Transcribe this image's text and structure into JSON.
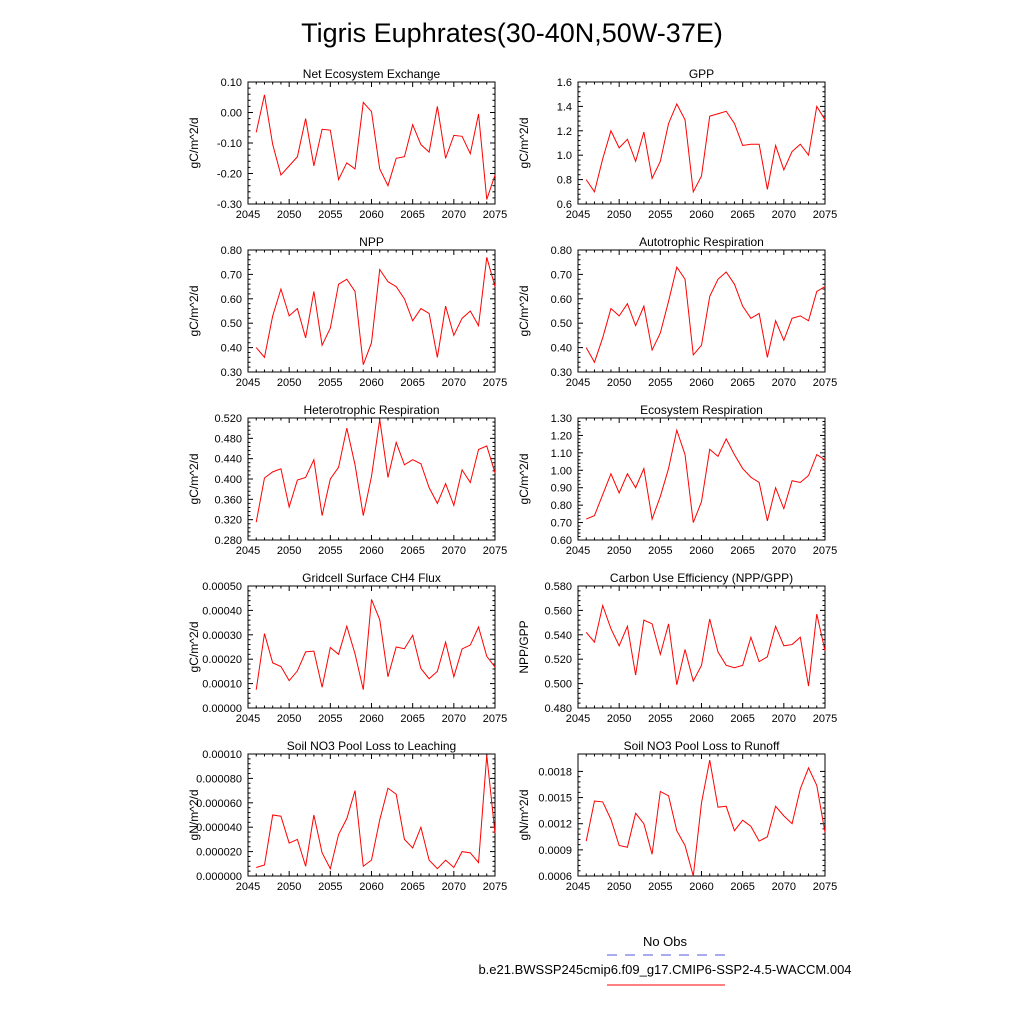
{
  "figure": {
    "title": "Tigris Euphrates(30-40N,50W-37E)",
    "line_color": "#ff0000",
    "obs_color": "#5555dd"
  },
  "legend": {
    "obs_label": "No Obs",
    "model_label": "b.e21.BWSSP245cmip6.f09_g17.CMIP6-SSP2-4.5-WACCM.004"
  },
  "chart_data": [
    {
      "type": "line",
      "title": "Net Ecosystem Exchange",
      "ylabel": "gC/m^2/d",
      "xlim": [
        2045,
        2075
      ],
      "ylim": [
        -0.3,
        0.1
      ],
      "xticks": [
        "2045",
        "2050",
        "2055",
        "2060",
        "2065",
        "2070",
        "2075"
      ],
      "yticks": [
        {
          "v": -0.3,
          "l": "-0.30"
        },
        {
          "v": -0.2,
          "l": "-0.20"
        },
        {
          "v": -0.1,
          "l": "-0.10"
        },
        {
          "v": 0.0,
          "l": "0.00"
        },
        {
          "v": 0.1,
          "l": "0.10"
        }
      ],
      "x": [
        2046,
        2047,
        2048,
        2049,
        2050,
        2051,
        2052,
        2053,
        2054,
        2055,
        2056,
        2057,
        2058,
        2059,
        2060,
        2061,
        2062,
        2063,
        2064,
        2065,
        2066,
        2067,
        2068,
        2069,
        2070,
        2071,
        2072,
        2073,
        2074,
        2075
      ],
      "series": [
        {
          "values": [
            -0.065,
            0.058,
            -0.105,
            -0.205,
            -0.175,
            -0.145,
            -0.02,
            -0.175,
            -0.055,
            -0.058,
            -0.22,
            -0.165,
            -0.185,
            0.033,
            0.003,
            -0.185,
            -0.24,
            -0.15,
            -0.145,
            -0.04,
            -0.105,
            -0.13,
            0.02,
            -0.15,
            -0.075,
            -0.078,
            -0.135,
            -0.005,
            -0.285,
            -0.205
          ]
        }
      ]
    },
    {
      "type": "line",
      "title": "GPP",
      "ylabel": "gC/m^2/d",
      "xlim": [
        2045,
        2075
      ],
      "ylim": [
        0.6,
        1.6
      ],
      "xticks": [
        "2045",
        "2050",
        "2055",
        "2060",
        "2065",
        "2070",
        "2075"
      ],
      "yticks": [
        {
          "v": 0.6,
          "l": "0.6"
        },
        {
          "v": 0.8,
          "l": "0.8"
        },
        {
          "v": 1.0,
          "l": "1.0"
        },
        {
          "v": 1.2,
          "l": "1.2"
        },
        {
          "v": 1.4,
          "l": "1.4"
        },
        {
          "v": 1.6,
          "l": "1.6"
        }
      ],
      "x": [
        2046,
        2047,
        2048,
        2049,
        2050,
        2051,
        2052,
        2053,
        2054,
        2055,
        2056,
        2057,
        2058,
        2059,
        2060,
        2061,
        2062,
        2063,
        2064,
        2065,
        2066,
        2067,
        2068,
        2069,
        2070,
        2071,
        2072,
        2073,
        2074,
        2075
      ],
      "series": [
        {
          "values": [
            0.8,
            0.7,
            0.97,
            1.2,
            1.06,
            1.13,
            0.95,
            1.19,
            0.81,
            0.95,
            1.26,
            1.42,
            1.29,
            0.7,
            0.83,
            1.32,
            1.34,
            1.36,
            1.26,
            1.08,
            1.09,
            1.09,
            0.72,
            1.08,
            0.88,
            1.03,
            1.09,
            1.0,
            1.4,
            1.29
          ]
        }
      ]
    },
    {
      "type": "line",
      "title": "NPP",
      "ylabel": "gC/m^2/d",
      "xlim": [
        2045,
        2075
      ],
      "ylim": [
        0.3,
        0.8
      ],
      "xticks": [
        "2045",
        "2050",
        "2055",
        "2060",
        "2065",
        "2070",
        "2075"
      ],
      "yticks": [
        {
          "v": 0.3,
          "l": "0.30"
        },
        {
          "v": 0.4,
          "l": "0.40"
        },
        {
          "v": 0.5,
          "l": "0.50"
        },
        {
          "v": 0.6,
          "l": "0.60"
        },
        {
          "v": 0.7,
          "l": "0.70"
        },
        {
          "v": 0.8,
          "l": "0.80"
        }
      ],
      "x": [
        2046,
        2047,
        2048,
        2049,
        2050,
        2051,
        2052,
        2053,
        2054,
        2055,
        2056,
        2057,
        2058,
        2059,
        2060,
        2061,
        2062,
        2063,
        2064,
        2065,
        2066,
        2067,
        2068,
        2069,
        2070,
        2071,
        2072,
        2073,
        2074,
        2075
      ],
      "series": [
        {
          "values": [
            0.4,
            0.36,
            0.53,
            0.64,
            0.53,
            0.56,
            0.44,
            0.63,
            0.41,
            0.48,
            0.66,
            0.68,
            0.63,
            0.33,
            0.42,
            0.72,
            0.67,
            0.65,
            0.6,
            0.51,
            0.56,
            0.54,
            0.36,
            0.57,
            0.45,
            0.52,
            0.55,
            0.49,
            0.77,
            0.65
          ]
        }
      ]
    },
    {
      "type": "line",
      "title": "Autotrophic Respiration",
      "ylabel": "gC/m^2/d",
      "xlim": [
        2045,
        2075
      ],
      "ylim": [
        0.3,
        0.8
      ],
      "xticks": [
        "2045",
        "2050",
        "2055",
        "2060",
        "2065",
        "2070",
        "2075"
      ],
      "yticks": [
        {
          "v": 0.3,
          "l": "0.30"
        },
        {
          "v": 0.4,
          "l": "0.40"
        },
        {
          "v": 0.5,
          "l": "0.50"
        },
        {
          "v": 0.6,
          "l": "0.60"
        },
        {
          "v": 0.7,
          "l": "0.70"
        },
        {
          "v": 0.8,
          "l": "0.80"
        }
      ],
      "x": [
        2046,
        2047,
        2048,
        2049,
        2050,
        2051,
        2052,
        2053,
        2054,
        2055,
        2056,
        2057,
        2058,
        2059,
        2060,
        2061,
        2062,
        2063,
        2064,
        2065,
        2066,
        2067,
        2068,
        2069,
        2070,
        2071,
        2072,
        2073,
        2074,
        2075
      ],
      "series": [
        {
          "values": [
            0.4,
            0.34,
            0.44,
            0.56,
            0.53,
            0.58,
            0.49,
            0.57,
            0.39,
            0.46,
            0.59,
            0.73,
            0.68,
            0.37,
            0.41,
            0.61,
            0.68,
            0.71,
            0.66,
            0.57,
            0.52,
            0.54,
            0.36,
            0.51,
            0.43,
            0.52,
            0.53,
            0.51,
            0.63,
            0.65
          ]
        }
      ]
    },
    {
      "type": "line",
      "title": "Heterotrophic Respiration",
      "ylabel": "gC/m^2/d",
      "xlim": [
        2045,
        2075
      ],
      "ylim": [
        0.28,
        0.52
      ],
      "xticks": [
        "2045",
        "2050",
        "2055",
        "2060",
        "2065",
        "2070",
        "2075"
      ],
      "yticks": [
        {
          "v": 0.28,
          "l": "0.280"
        },
        {
          "v": 0.32,
          "l": "0.320"
        },
        {
          "v": 0.36,
          "l": "0.360"
        },
        {
          "v": 0.4,
          "l": "0.400"
        },
        {
          "v": 0.44,
          "l": "0.440"
        },
        {
          "v": 0.48,
          "l": "0.480"
        },
        {
          "v": 0.52,
          "l": "0.520"
        }
      ],
      "x": [
        2046,
        2047,
        2048,
        2049,
        2050,
        2051,
        2052,
        2053,
        2054,
        2055,
        2056,
        2057,
        2058,
        2059,
        2060,
        2061,
        2062,
        2063,
        2064,
        2065,
        2066,
        2067,
        2068,
        2069,
        2070,
        2071,
        2072,
        2073,
        2074,
        2075
      ],
      "series": [
        {
          "values": [
            0.315,
            0.402,
            0.414,
            0.42,
            0.345,
            0.398,
            0.403,
            0.438,
            0.328,
            0.4,
            0.423,
            0.5,
            0.428,
            0.328,
            0.405,
            0.517,
            0.403,
            0.472,
            0.428,
            0.438,
            0.43,
            0.383,
            0.352,
            0.391,
            0.348,
            0.418,
            0.393,
            0.458,
            0.465,
            0.412
          ]
        }
      ]
    },
    {
      "type": "line",
      "title": "Ecosystem Respiration",
      "ylabel": "gC/m^2/d",
      "xlim": [
        2045,
        2075
      ],
      "ylim": [
        0.6,
        1.3
      ],
      "xticks": [
        "2045",
        "2050",
        "2055",
        "2060",
        "2065",
        "2070",
        "2075"
      ],
      "yticks": [
        {
          "v": 0.6,
          "l": "0.60"
        },
        {
          "v": 0.7,
          "l": "0.70"
        },
        {
          "v": 0.8,
          "l": "0.80"
        },
        {
          "v": 0.9,
          "l": "0.90"
        },
        {
          "v": 1.0,
          "l": "1.00"
        },
        {
          "v": 1.1,
          "l": "1.10"
        },
        {
          "v": 1.2,
          "l": "1.20"
        },
        {
          "v": 1.3,
          "l": "1.30"
        }
      ],
      "x": [
        2046,
        2047,
        2048,
        2049,
        2050,
        2051,
        2052,
        2053,
        2054,
        2055,
        2056,
        2057,
        2058,
        2059,
        2060,
        2061,
        2062,
        2063,
        2064,
        2065,
        2066,
        2067,
        2068,
        2069,
        2070,
        2071,
        2072,
        2073,
        2074,
        2075
      ],
      "series": [
        {
          "values": [
            0.72,
            0.74,
            0.86,
            0.98,
            0.87,
            0.98,
            0.9,
            1.01,
            0.72,
            0.85,
            1.01,
            1.23,
            1.09,
            0.7,
            0.82,
            1.12,
            1.08,
            1.18,
            1.09,
            1.01,
            0.96,
            0.93,
            0.71,
            0.9,
            0.78,
            0.94,
            0.93,
            0.97,
            1.09,
            1.06
          ]
        }
      ]
    },
    {
      "type": "line",
      "title": "Gridcell Surface CH4 Flux",
      "ylabel": "gC/m^2/d",
      "xlim": [
        2045,
        2075
      ],
      "ylim": [
        0.0,
        0.0005
      ],
      "xticks": [
        "2045",
        "2050",
        "2055",
        "2060",
        "2065",
        "2070",
        "2075"
      ],
      "yticks": [
        {
          "v": 0.0,
          "l": "0.00000"
        },
        {
          "v": 0.0001,
          "l": "0.00010"
        },
        {
          "v": 0.0002,
          "l": "0.00020"
        },
        {
          "v": 0.0003,
          "l": "0.00030"
        },
        {
          "v": 0.0004,
          "l": "0.00040"
        },
        {
          "v": 0.0005,
          "l": "0.00050"
        }
      ],
      "x": [
        2046,
        2047,
        2048,
        2049,
        2050,
        2051,
        2052,
        2053,
        2054,
        2055,
        2056,
        2057,
        2058,
        2059,
        2060,
        2061,
        2062,
        2063,
        2064,
        2065,
        2066,
        2067,
        2068,
        2069,
        2070,
        2071,
        2072,
        2073,
        2074,
        2075
      ],
      "series": [
        {
          "values": [
            7.5e-05,
            0.000305,
            0.000185,
            0.00017,
            0.000112,
            0.000152,
            0.00023,
            0.000233,
            8.5e-05,
            0.000248,
            0.00022,
            0.000335,
            0.000222,
            7.5e-05,
            0.000445,
            0.000362,
            0.000128,
            0.00025,
            0.000243,
            0.000298,
            0.000162,
            0.00012,
            0.00015,
            0.00027,
            0.000128,
            0.000242,
            0.000258,
            0.000332,
            0.000212,
            0.000168
          ]
        }
      ]
    },
    {
      "type": "line",
      "title": "Carbon Use Efficiency (NPP/GPP)",
      "ylabel": "NPP/GPP",
      "xlim": [
        2045,
        2075
      ],
      "ylim": [
        0.48,
        0.58
      ],
      "xticks": [
        "2045",
        "2050",
        "2055",
        "2060",
        "2065",
        "2070",
        "2075"
      ],
      "yticks": [
        {
          "v": 0.48,
          "l": "0.480"
        },
        {
          "v": 0.5,
          "l": "0.500"
        },
        {
          "v": 0.52,
          "l": "0.520"
        },
        {
          "v": 0.54,
          "l": "0.540"
        },
        {
          "v": 0.56,
          "l": "0.560"
        },
        {
          "v": 0.58,
          "l": "0.580"
        }
      ],
      "x": [
        2046,
        2047,
        2048,
        2049,
        2050,
        2051,
        2052,
        2053,
        2054,
        2055,
        2056,
        2057,
        2058,
        2059,
        2060,
        2061,
        2062,
        2063,
        2064,
        2065,
        2066,
        2067,
        2068,
        2069,
        2070,
        2071,
        2072,
        2073,
        2074,
        2075
      ],
      "series": [
        {
          "values": [
            0.542,
            0.534,
            0.564,
            0.545,
            0.531,
            0.547,
            0.507,
            0.552,
            0.549,
            0.524,
            0.549,
            0.499,
            0.528,
            0.502,
            0.515,
            0.553,
            0.526,
            0.515,
            0.513,
            0.515,
            0.538,
            0.518,
            0.522,
            0.547,
            0.531,
            0.532,
            0.538,
            0.498,
            0.557,
            0.527
          ]
        }
      ]
    },
    {
      "type": "line",
      "title": "Soil NO3 Pool Loss to Leaching",
      "ylabel": "gN/m^2/d",
      "xlim": [
        2045,
        2075
      ],
      "ylim": [
        0.0,
        0.0001
      ],
      "xticks": [
        "2045",
        "2050",
        "2055",
        "2060",
        "2065",
        "2070",
        "2075"
      ],
      "yticks": [
        {
          "v": 0.0,
          "l": "0.000000"
        },
        {
          "v": 2e-05,
          "l": "0.000020"
        },
        {
          "v": 4e-05,
          "l": "0.000040"
        },
        {
          "v": 6e-05,
          "l": "0.000060"
        },
        {
          "v": 8e-05,
          "l": "0.000080"
        },
        {
          "v": 0.0001,
          "l": "0.00010"
        }
      ],
      "x": [
        2046,
        2047,
        2048,
        2049,
        2050,
        2051,
        2052,
        2053,
        2054,
        2055,
        2056,
        2057,
        2058,
        2059,
        2060,
        2061,
        2062,
        2063,
        2064,
        2065,
        2066,
        2067,
        2068,
        2069,
        2070,
        2071,
        2072,
        2073,
        2074,
        2075
      ],
      "series": [
        {
          "values": [
            7e-06,
            9e-06,
            5e-05,
            4.9e-05,
            2.7e-05,
            3e-05,
            8e-06,
            5e-05,
            1.9e-05,
            6e-06,
            3.4e-05,
            4.7e-05,
            7e-05,
            8e-06,
            1.3e-05,
            4.6e-05,
            7.2e-05,
            6.7e-05,
            3e-05,
            2.3e-05,
            4e-05,
            1.3e-05,
            6e-06,
            1.3e-05,
            7e-06,
            2e-05,
            1.9e-05,
            1.1e-05,
            9.9e-05,
            3.5e-05
          ]
        }
      ]
    },
    {
      "type": "line",
      "title": "Soil NO3 Pool Loss to Runoff",
      "ylabel": "gN/m^2/d",
      "xlim": [
        2045,
        2075
      ],
      "ylim": [
        0.0006,
        0.002
      ],
      "xticks": [
        "2045",
        "2050",
        "2055",
        "2060",
        "2065",
        "2070",
        "2075"
      ],
      "yticks": [
        {
          "v": 0.0006,
          "l": "0.0006"
        },
        {
          "v": 0.0009,
          "l": "0.0009"
        },
        {
          "v": 0.0012,
          "l": "0.0012"
        },
        {
          "v": 0.0015,
          "l": "0.0015"
        },
        {
          "v": 0.0018,
          "l": "0.0018"
        }
      ],
      "x": [
        2046,
        2047,
        2048,
        2049,
        2050,
        2051,
        2052,
        2053,
        2054,
        2055,
        2056,
        2057,
        2058,
        2059,
        2060,
        2061,
        2062,
        2063,
        2064,
        2065,
        2066,
        2067,
        2068,
        2069,
        2070,
        2071,
        2072,
        2073,
        2074,
        2075
      ],
      "series": [
        {
          "values": [
            0.001,
            0.00146,
            0.00145,
            0.00125,
            0.00095,
            0.00093,
            0.00132,
            0.0012,
            0.00085,
            0.00157,
            0.00152,
            0.00112,
            0.00095,
            0.0006,
            0.00144,
            0.00193,
            0.00139,
            0.0014,
            0.00112,
            0.00124,
            0.00117,
            0.001,
            0.00105,
            0.0014,
            0.00129,
            0.0012,
            0.0016,
            0.00184,
            0.00164,
            0.0011
          ]
        }
      ]
    }
  ]
}
